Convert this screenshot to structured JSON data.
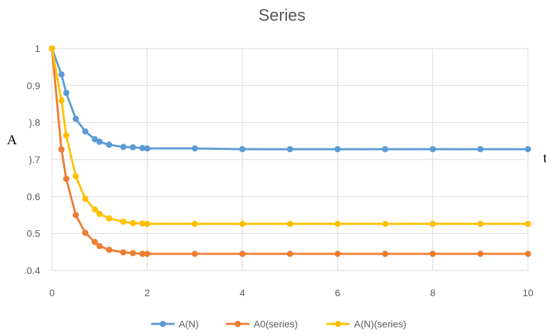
{
  "chart_data": {
    "type": "line",
    "title": "Series",
    "ylabel": "A",
    "xlabel": "t",
    "xlim": [
      0,
      10
    ],
    "ylim": [
      0.4,
      1
    ],
    "xticks": [
      0,
      2,
      4,
      6,
      8,
      10
    ],
    "xtick_labels": [
      "0",
      "2",
      "4",
      "6",
      "8",
      "10"
    ],
    "yticks": [
      0.4,
      0.5,
      0.6,
      0.7,
      0.8,
      0.9,
      1
    ],
    "ytick_labels": [
      "0.4",
      "0.5",
      "0.6",
      ").7",
      ").8",
      "0.9",
      "1"
    ],
    "grid": true,
    "legend": "bottom",
    "series": [
      {
        "name": "A(N)",
        "color": "#5B9BD5",
        "points": [
          [
            0,
            1.0
          ],
          [
            0.2,
            0.93
          ],
          [
            0.3,
            0.88
          ],
          [
            0.5,
            0.81
          ],
          [
            0.7,
            0.776
          ],
          [
            0.9,
            0.755
          ],
          [
            1.0,
            0.748
          ],
          [
            1.2,
            0.74
          ],
          [
            1.5,
            0.734
          ],
          [
            1.7,
            0.733
          ],
          [
            1.9,
            0.731
          ],
          [
            2.0,
            0.73
          ],
          [
            3,
            0.73
          ],
          [
            4,
            0.728
          ],
          [
            5,
            0.728
          ],
          [
            6,
            0.728
          ],
          [
            7,
            0.728
          ],
          [
            8,
            0.728
          ],
          [
            9,
            0.728
          ],
          [
            10,
            0.728
          ]
        ]
      },
      {
        "name": "A0(series)",
        "color": "#ED7D31",
        "points": [
          [
            0,
            1.0
          ],
          [
            0.2,
            0.727
          ],
          [
            0.3,
            0.648
          ],
          [
            0.5,
            0.55
          ],
          [
            0.7,
            0.502
          ],
          [
            0.9,
            0.477
          ],
          [
            1.0,
            0.466
          ],
          [
            1.2,
            0.456
          ],
          [
            1.5,
            0.449
          ],
          [
            1.7,
            0.447
          ],
          [
            1.9,
            0.445
          ],
          [
            2.0,
            0.445
          ],
          [
            3,
            0.445
          ],
          [
            4,
            0.445
          ],
          [
            5,
            0.445
          ],
          [
            6,
            0.445
          ],
          [
            7,
            0.445
          ],
          [
            8,
            0.445
          ],
          [
            9,
            0.445
          ],
          [
            10,
            0.445
          ]
        ]
      },
      {
        "name": "A(N)(series)",
        "color": "#FFC000",
        "points": [
          [
            0,
            1.0
          ],
          [
            0.2,
            0.86
          ],
          [
            0.3,
            0.765
          ],
          [
            0.5,
            0.655
          ],
          [
            0.7,
            0.594
          ],
          [
            0.9,
            0.565
          ],
          [
            1.0,
            0.553
          ],
          [
            1.2,
            0.541
          ],
          [
            1.5,
            0.532
          ],
          [
            1.7,
            0.528
          ],
          [
            1.9,
            0.527
          ],
          [
            2.0,
            0.526
          ],
          [
            3,
            0.526
          ],
          [
            4,
            0.526
          ],
          [
            5,
            0.526
          ],
          [
            6,
            0.526
          ],
          [
            7,
            0.526
          ],
          [
            8,
            0.526
          ],
          [
            9,
            0.526
          ],
          [
            10,
            0.526
          ]
        ]
      }
    ]
  }
}
